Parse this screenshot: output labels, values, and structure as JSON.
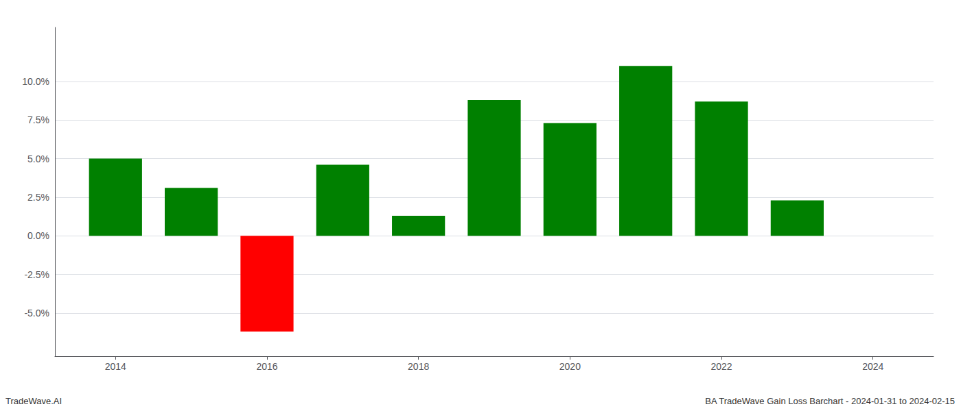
{
  "chart_data": {
    "type": "bar",
    "x": [
      2014,
      2015,
      2016,
      2017,
      2018,
      2019,
      2020,
      2021,
      2022,
      2023
    ],
    "values": [
      0.05,
      0.031,
      -0.062,
      0.046,
      0.013,
      0.088,
      0.073,
      0.11,
      0.087,
      0.023
    ],
    "colors": [
      "#008000",
      "#008000",
      "#ff0000",
      "#008000",
      "#008000",
      "#008000",
      "#008000",
      "#008000",
      "#008000",
      "#008000"
    ],
    "xlim": [
      2013.2,
      2024.8
    ],
    "xticks": [
      2014,
      2016,
      2018,
      2020,
      2022,
      2024
    ],
    "ylim": [
      -0.078,
      0.135
    ],
    "yticks": [
      {
        "value": -0.05,
        "label": "-5.0%"
      },
      {
        "value": -0.025,
        "label": "-2.5%"
      },
      {
        "value": 0.0,
        "label": "0.0%"
      },
      {
        "value": 0.025,
        "label": "2.5%"
      },
      {
        "value": 0.05,
        "label": "5.0%"
      },
      {
        "value": 0.075,
        "label": "7.5%"
      },
      {
        "value": 0.1,
        "label": "10.0%"
      }
    ],
    "grid": true,
    "annotations": [
      "TradeWave.AI",
      "BA TradeWave Gain Loss Barchart - 2024-01-31 to 2024-02-15"
    ]
  }
}
